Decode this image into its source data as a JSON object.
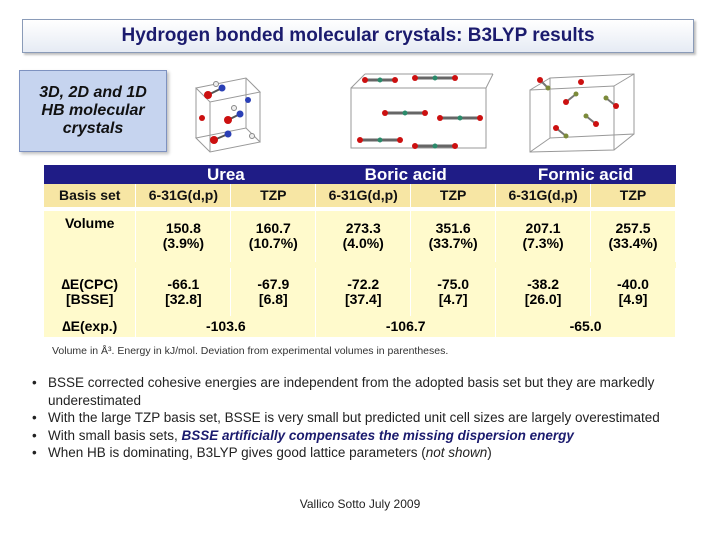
{
  "title": "Hydrogen bonded molecular crystals: B3LYP results",
  "label": [
    "3D, 2D and 1D",
    "HB molecular",
    "crystals"
  ],
  "table": {
    "groups": [
      "Urea",
      "Boric acid",
      "Formic acid"
    ],
    "basis_header": "Basis set",
    "basis_sets": [
      "6-31G(d,p)",
      "TZP",
      "6-31G(d,p)",
      "TZP",
      "6-31G(d,p)",
      "TZP"
    ],
    "volume_label": "Volume",
    "volume": [
      "150.8",
      "160.7",
      "273.3",
      "351.6",
      "207.1",
      "257.5"
    ],
    "volume_dev": [
      "(3.9%)",
      "(10.7%)",
      "(4.0%)",
      "(33.7%)",
      "(7.3%)",
      "(33.4%)"
    ],
    "ecpc_label": "∆E(CPC)",
    "bsse_label": "[BSSE]",
    "ecpc": [
      "-66.1",
      "-67.9",
      "-72.2",
      "-75.0",
      "-38.2",
      "-40.0"
    ],
    "bsse": [
      "[32.8]",
      "[6.8]",
      "[37.4]",
      "[4.7]",
      "[26.0]",
      "[4.9]"
    ],
    "eexp_label": "∆E(exp.)",
    "eexp": [
      "-103.6",
      "-106.7",
      "-65.0"
    ]
  },
  "caption": "Volume in Å³. Energy in kJ/mol. Deviation from experimental volumes in parentheses.",
  "bullets": {
    "b1": "BSSE corrected cohesive energies are independent from the adopted basis set but they are markedly underestimated",
    "b2": "With the large TZP basis set, BSSE is very small but predicted unit cell sizes are largely overestimated",
    "b3_pre": "With small basis sets, ",
    "b3_emph": "BSSE artificially compensates the missing dispersion energy",
    "b4_pre": "When HB is dominating, B3LYP gives good lattice parameters (",
    "b4_em": "not shown",
    "b4_post": ")"
  },
  "footer": "Vallico Sotto  July 2009",
  "colors": {
    "title": "#1b1b6e",
    "header_bg": "#1f1c86",
    "subheader_bg": "#f7e6a4",
    "body_bg": "#fffacc",
    "label_bg": "#c6d4ef"
  }
}
